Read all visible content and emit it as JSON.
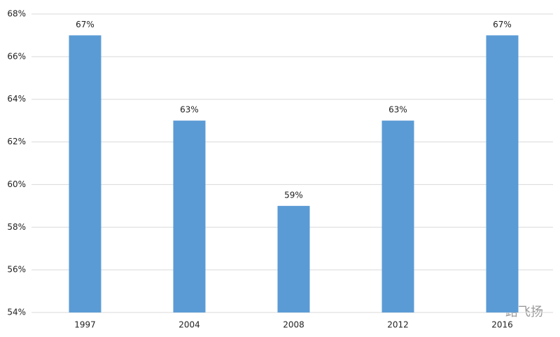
{
  "chart_data": {
    "type": "bar",
    "categories": [
      "1997",
      "2004",
      "2008",
      "2012",
      "2016"
    ],
    "values": [
      67,
      63,
      59,
      63,
      67
    ],
    "value_labels": [
      "67%",
      "63%",
      "59%",
      "63%",
      "67%"
    ],
    "color": "#5b9bd5",
    "ylim": [
      54,
      68
    ],
    "yticks": [
      {
        "value": 54,
        "label": "54%"
      },
      {
        "value": 56,
        "label": "56%"
      },
      {
        "value": 58,
        "label": "58%"
      },
      {
        "value": 60,
        "label": "60%"
      },
      {
        "value": 62,
        "label": "62%"
      },
      {
        "value": 64,
        "label": "64%"
      },
      {
        "value": 66,
        "label": "66%"
      },
      {
        "value": 68,
        "label": "68%"
      }
    ],
    "grid": true,
    "watermark": "一路飞扬"
  }
}
